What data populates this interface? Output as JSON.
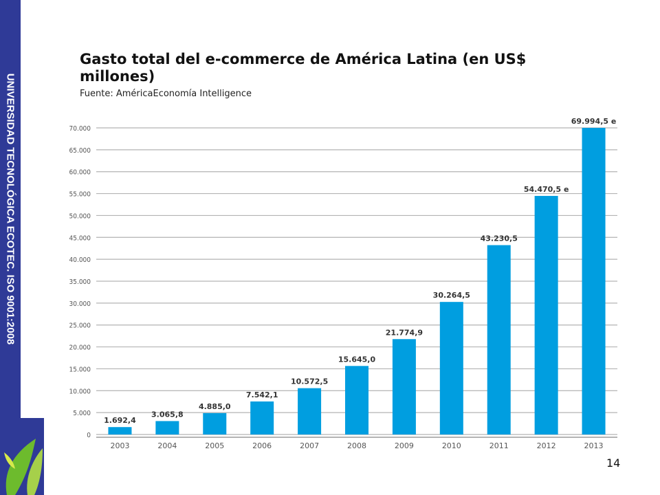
{
  "sidebar": {
    "text": "UNIVERSIDAD TECNOLÓGICA ECOTEC. ISO 9001:2008"
  },
  "header": {
    "title": "Gasto total del e-commerce de América Latina (en US$ millones)",
    "subtitle": "Fuente: AméricaEconomía Intelligence"
  },
  "page_number": "14",
  "colors": {
    "bar": "#009ee0",
    "sidebar": "#2f3a97",
    "grid": "#b3b3b3",
    "axis_text": "#555555"
  },
  "chart_data": {
    "type": "bar",
    "title": "Gasto total del e-commerce de América Latina (en US$ millones)",
    "xlabel": "",
    "ylabel": "",
    "ylim": [
      0,
      70000
    ],
    "grid": true,
    "yticks": [
      0,
      5000,
      10000,
      15000,
      20000,
      25000,
      30000,
      35000,
      40000,
      45000,
      50000,
      55000,
      60000,
      65000,
      70000
    ],
    "ytick_labels": [
      "0",
      "5.000",
      "10.000",
      "15.000",
      "20.000",
      "25.000",
      "30.000",
      "35.000",
      "40.000",
      "45.000",
      "50.000",
      "55.000",
      "60.000",
      "65.000",
      "70.000"
    ],
    "categories": [
      "2003",
      "2004",
      "2005",
      "2006",
      "2007",
      "2008",
      "2009",
      "2010",
      "2011",
      "2012",
      "2013"
    ],
    "values": [
      1692.4,
      3065.8,
      4885.0,
      7542.1,
      10572.5,
      15645.0,
      21774.9,
      30264.5,
      43230.5,
      54470.5,
      69994.5
    ],
    "value_labels": [
      "1.692,4",
      "3.065,8",
      "4.885,0",
      "7.542,1",
      "10.572,5",
      "15.645,0",
      "21.774,9",
      "30.264,5",
      "43.230,5",
      "54.470,5 e",
      "69.994,5 e"
    ]
  }
}
